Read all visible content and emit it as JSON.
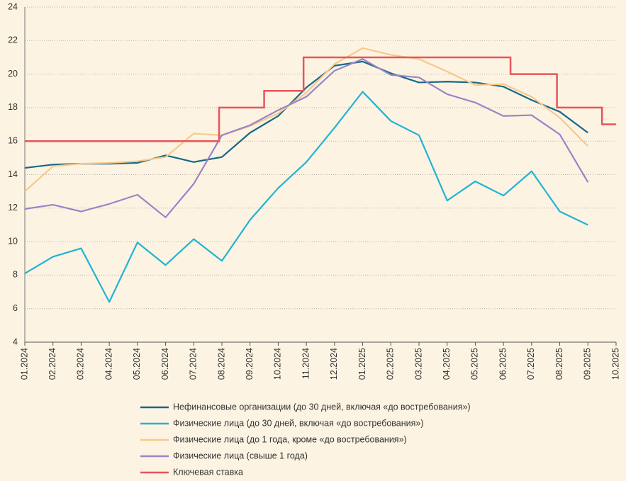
{
  "chart_data": {
    "type": "line",
    "categories": [
      "01.2024",
      "02.2024",
      "03.2024",
      "04.2024",
      "05.2024",
      "06.2024",
      "07.2024",
      "08.2024",
      "09.2024",
      "10.2024",
      "11.2024",
      "12.2024",
      "01.2025",
      "02.2025",
      "03.2025",
      "04.2025",
      "05.2025",
      "06.2025",
      "07.2025",
      "08.2025",
      "09.2025",
      "10.2025"
    ],
    "ylim": [
      4,
      24
    ],
    "yticks": [
      4,
      6,
      8,
      10,
      12,
      14,
      16,
      18,
      20,
      22,
      24
    ],
    "grid": true,
    "legend": "bottom",
    "series": [
      {
        "name": "Нефинансовые организации (до 30 дней, включая «до востребования»)",
        "color": "#156a87",
        "values": [
          14.4,
          14.6,
          14.65,
          14.65,
          14.7,
          15.15,
          14.75,
          15.05,
          16.5,
          17.5,
          19.2,
          20.5,
          20.75,
          20.05,
          19.5,
          19.55,
          19.5,
          19.25,
          18.45,
          17.75,
          16.5,
          null
        ]
      },
      {
        "name": "Физические лица (до 30 дней, включая «до востребования»)",
        "color": "#1fb4d3",
        "values": [
          8.1,
          9.1,
          9.6,
          6.4,
          9.95,
          8.6,
          10.15,
          8.85,
          11.3,
          13.2,
          14.75,
          16.8,
          18.95,
          17.2,
          16.35,
          12.45,
          13.6,
          12.75,
          14.2,
          11.8,
          11.0,
          null
        ]
      },
      {
        "name": "Физические лица (до 1 года, кроме «до востребования»)",
        "color": "#f8c88a",
        "values": [
          13.0,
          14.5,
          14.65,
          14.7,
          14.8,
          15.05,
          16.45,
          16.35,
          16.9,
          17.65,
          18.9,
          20.6,
          21.55,
          21.15,
          20.9,
          20.15,
          19.35,
          19.4,
          18.65,
          17.4,
          15.7,
          null
        ]
      },
      {
        "name": "Физические лица (свыше 1 года)",
        "color": "#9a84c8",
        "values": [
          11.95,
          12.2,
          11.8,
          12.25,
          12.8,
          11.45,
          13.45,
          16.35,
          16.95,
          17.85,
          18.65,
          20.2,
          20.9,
          19.95,
          19.8,
          18.8,
          18.3,
          17.5,
          17.55,
          16.4,
          13.55,
          null
        ]
      },
      {
        "name": "Ключевая ставка",
        "color": "#e8545b",
        "step": "post",
        "x": [
          0,
          6.9,
          8.5,
          9.9,
          17.25,
          18.9,
          20.5,
          21
        ],
        "values": [
          16,
          18,
          19,
          21,
          20,
          18,
          17,
          17
        ]
      }
    ]
  }
}
